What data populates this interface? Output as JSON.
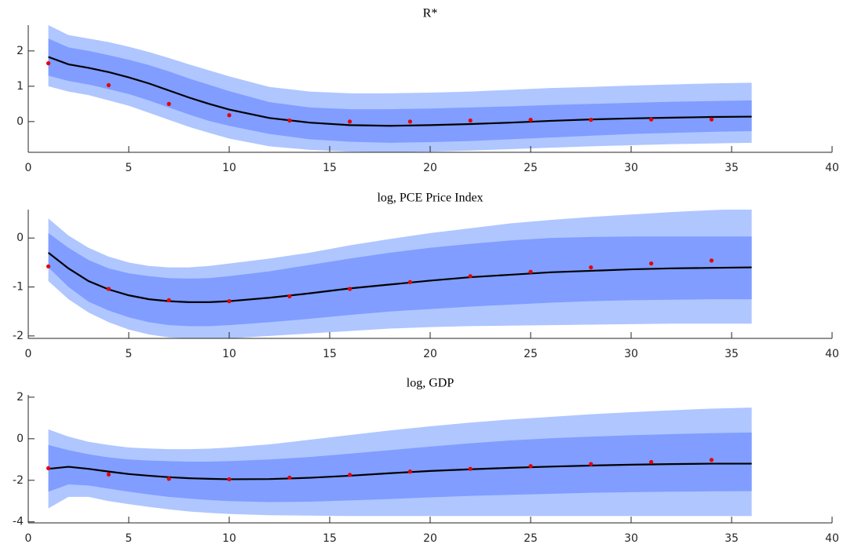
{
  "chart_data": [
    {
      "type": "fan",
      "title": "R*",
      "xlim": [
        0,
        40
      ],
      "xticks": [
        0,
        5,
        10,
        15,
        20,
        25,
        30,
        35,
        40
      ],
      "ylim": [
        -0.87,
        2.73
      ],
      "yticks": [
        0,
        1,
        2
      ],
      "x": [
        1,
        2,
        3,
        4,
        5,
        6,
        7,
        8,
        9,
        10,
        12,
        14,
        16,
        18,
        20,
        22,
        24,
        26,
        28,
        30,
        32,
        34,
        36
      ],
      "bands": [
        {
          "color": "#afc6ff",
          "upper": [
            2.73,
            2.45,
            2.35,
            2.25,
            2.12,
            1.97,
            1.8,
            1.62,
            1.45,
            1.28,
            0.98,
            0.85,
            0.8,
            0.8,
            0.82,
            0.85,
            0.9,
            0.95,
            0.98,
            1.02,
            1.05,
            1.08,
            1.1
          ],
          "lower": [
            1.0,
            0.85,
            0.75,
            0.6,
            0.45,
            0.25,
            0.05,
            -0.15,
            -0.32,
            -0.48,
            -0.7,
            -0.8,
            -0.85,
            -0.87,
            -0.85,
            -0.82,
            -0.78,
            -0.74,
            -0.7,
            -0.67,
            -0.64,
            -0.62,
            -0.6
          ]
        },
        {
          "color": "#809dff",
          "upper": [
            2.35,
            2.1,
            2.0,
            1.88,
            1.75,
            1.6,
            1.42,
            1.22,
            1.04,
            0.86,
            0.55,
            0.4,
            0.35,
            0.35,
            0.37,
            0.4,
            0.43,
            0.47,
            0.5,
            0.53,
            0.56,
            0.58,
            0.6
          ],
          "lower": [
            1.3,
            1.15,
            1.05,
            0.92,
            0.78,
            0.6,
            0.4,
            0.2,
            0.02,
            -0.12,
            -0.35,
            -0.5,
            -0.57,
            -0.6,
            -0.58,
            -0.55,
            -0.5,
            -0.45,
            -0.4,
            -0.35,
            -0.32,
            -0.29,
            -0.27
          ]
        }
      ],
      "series": [
        {
          "color": "#000000",
          "values": [
            1.83,
            1.62,
            1.52,
            1.4,
            1.25,
            1.08,
            0.88,
            0.68,
            0.5,
            0.34,
            0.1,
            -0.03,
            -0.1,
            -0.12,
            -0.1,
            -0.07,
            -0.03,
            0.02,
            0.06,
            0.09,
            0.11,
            0.13,
            0.14
          ]
        }
      ],
      "points": {
        "color": "#e60000",
        "x": [
          1,
          4,
          7,
          10,
          13,
          16,
          19,
          22,
          25,
          28,
          31,
          34
        ],
        "values": [
          1.65,
          1.03,
          0.5,
          0.18,
          0.03,
          0.0,
          0.0,
          0.03,
          0.05,
          0.05,
          0.06,
          0.06
        ]
      }
    },
    {
      "type": "fan",
      "title": "log, PCE Price Index",
      "xlim": [
        0,
        40
      ],
      "xticks": [
        0,
        5,
        10,
        15,
        20,
        25,
        30,
        35,
        40
      ],
      "ylim": [
        -2.05,
        0.58
      ],
      "yticks": [
        -2,
        -1,
        0
      ],
      "x": [
        1,
        2,
        3,
        4,
        5,
        6,
        7,
        8,
        9,
        10,
        12,
        14,
        16,
        18,
        20,
        22,
        24,
        26,
        28,
        30,
        32,
        34,
        36
      ],
      "bands": [
        {
          "color": "#afc6ff",
          "upper": [
            0.4,
            0.05,
            -0.2,
            -0.38,
            -0.5,
            -0.57,
            -0.6,
            -0.6,
            -0.57,
            -0.52,
            -0.42,
            -0.3,
            -0.15,
            -0.02,
            0.1,
            0.2,
            0.3,
            0.37,
            0.43,
            0.48,
            0.53,
            0.57,
            0.6
          ],
          "lower": [
            -0.88,
            -1.25,
            -1.52,
            -1.72,
            -1.87,
            -1.97,
            -2.03,
            -2.05,
            -2.05,
            -2.05,
            -2.0,
            -1.95,
            -1.9,
            -1.85,
            -1.82,
            -1.8,
            -1.79,
            -1.78,
            -1.77,
            -1.76,
            -1.75,
            -1.75,
            -1.75
          ]
        },
        {
          "color": "#809dff",
          "upper": [
            0.1,
            -0.2,
            -0.45,
            -0.62,
            -0.72,
            -0.78,
            -0.82,
            -0.83,
            -0.82,
            -0.78,
            -0.68,
            -0.55,
            -0.42,
            -0.3,
            -0.2,
            -0.12,
            -0.05,
            0.0,
            0.02,
            0.03,
            0.03,
            0.03,
            0.03
          ],
          "lower": [
            -0.6,
            -1.0,
            -1.3,
            -1.48,
            -1.62,
            -1.72,
            -1.78,
            -1.8,
            -1.8,
            -1.78,
            -1.72,
            -1.65,
            -1.57,
            -1.5,
            -1.45,
            -1.4,
            -1.36,
            -1.32,
            -1.29,
            -1.27,
            -1.26,
            -1.25,
            -1.25
          ]
        }
      ],
      "series": [
        {
          "color": "#000000",
          "values": [
            -0.3,
            -0.62,
            -0.88,
            -1.05,
            -1.17,
            -1.25,
            -1.29,
            -1.31,
            -1.31,
            -1.29,
            -1.22,
            -1.13,
            -1.03,
            -0.95,
            -0.87,
            -0.8,
            -0.75,
            -0.7,
            -0.67,
            -0.64,
            -0.62,
            -0.61,
            -0.6
          ]
        }
      ],
      "points": {
        "color": "#e60000",
        "x": [
          1,
          4,
          7,
          10,
          13,
          16,
          19,
          22,
          25,
          28,
          31,
          34
        ],
        "values": [
          -0.58,
          -1.04,
          -1.27,
          -1.29,
          -1.19,
          -1.04,
          -0.9,
          -0.78,
          -0.69,
          -0.6,
          -0.52,
          -0.46
        ]
      }
    },
    {
      "type": "fan",
      "title": "log, GDP",
      "xlim": [
        0,
        40
      ],
      "xticks": [
        0,
        5,
        10,
        15,
        20,
        25,
        30,
        35,
        40
      ],
      "ylim": [
        -4.05,
        2.11
      ],
      "yticks": [
        -4,
        -2,
        0,
        2
      ],
      "x": [
        1,
        2,
        3,
        4,
        5,
        6,
        7,
        8,
        9,
        10,
        12,
        14,
        16,
        18,
        20,
        22,
        24,
        26,
        28,
        30,
        32,
        34,
        36
      ],
      "bands": [
        {
          "color": "#afc6ff",
          "upper": [
            0.45,
            0.1,
            -0.15,
            -0.3,
            -0.42,
            -0.47,
            -0.5,
            -0.5,
            -0.48,
            -0.42,
            -0.27,
            -0.05,
            0.18,
            0.4,
            0.6,
            0.78,
            0.93,
            1.05,
            1.18,
            1.28,
            1.37,
            1.45,
            1.5
          ],
          "lower": [
            -3.35,
            -2.8,
            -2.8,
            -3.0,
            -3.15,
            -3.28,
            -3.4,
            -3.5,
            -3.57,
            -3.62,
            -3.68,
            -3.7,
            -3.72,
            -3.72,
            -3.72,
            -3.72,
            -3.72,
            -3.72,
            -3.72,
            -3.72,
            -3.72,
            -3.72,
            -3.72
          ]
        },
        {
          "color": "#809dff",
          "upper": [
            -0.3,
            -0.55,
            -0.75,
            -0.9,
            -1.0,
            -1.05,
            -1.08,
            -1.1,
            -1.1,
            -1.08,
            -1.0,
            -0.88,
            -0.72,
            -0.55,
            -0.38,
            -0.22,
            -0.08,
            0.02,
            0.1,
            0.17,
            0.22,
            0.27,
            0.3
          ],
          "lower": [
            -2.55,
            -2.2,
            -2.25,
            -2.4,
            -2.55,
            -2.68,
            -2.8,
            -2.88,
            -2.95,
            -3.0,
            -3.05,
            -3.03,
            -2.97,
            -2.9,
            -2.82,
            -2.75,
            -2.7,
            -2.65,
            -2.6,
            -2.57,
            -2.55,
            -2.53,
            -2.52
          ]
        }
      ],
      "series": [
        {
          "color": "#000000",
          "values": [
            -1.45,
            -1.35,
            -1.45,
            -1.58,
            -1.7,
            -1.78,
            -1.85,
            -1.9,
            -1.93,
            -1.95,
            -1.94,
            -1.88,
            -1.78,
            -1.66,
            -1.55,
            -1.47,
            -1.4,
            -1.34,
            -1.29,
            -1.25,
            -1.22,
            -1.2,
            -1.2
          ]
        }
      ],
      "points": {
        "color": "#e60000",
        "x": [
          1,
          4,
          7,
          10,
          13,
          16,
          19,
          22,
          25,
          28,
          31,
          34
        ],
        "values": [
          -1.42,
          -1.72,
          -1.93,
          -1.95,
          -1.87,
          -1.74,
          -1.58,
          -1.45,
          -1.32,
          -1.22,
          -1.12,
          -1.02
        ]
      }
    }
  ]
}
